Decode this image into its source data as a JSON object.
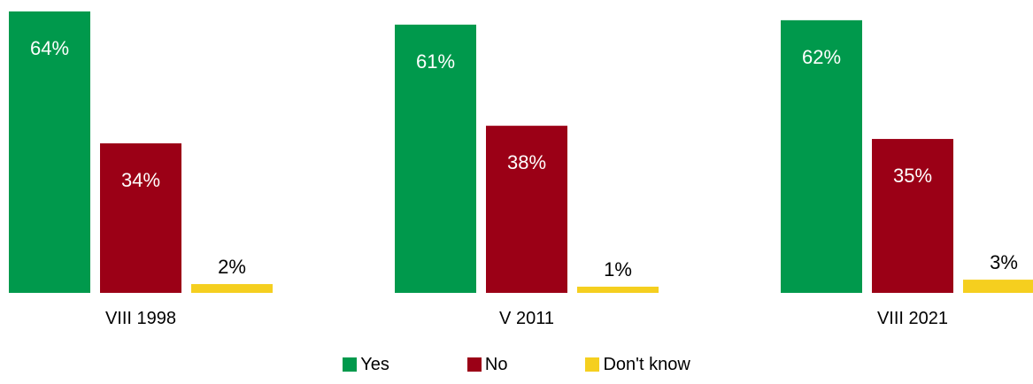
{
  "chart_data": {
    "type": "bar",
    "categories": [
      "VIII 1998",
      "V 2011",
      "VIII 2021"
    ],
    "series": [
      {
        "name": "Yes",
        "color": "#00994C",
        "values": [
          64,
          61,
          62
        ]
      },
      {
        "name": "No",
        "color": "#9B0016",
        "values": [
          34,
          38,
          35
        ]
      },
      {
        "name": "Don't know",
        "color": "#F5CF1F",
        "values": [
          2,
          1,
          3
        ]
      }
    ],
    "value_suffix": "%",
    "legend_position": "bottom",
    "grid": false,
    "ylim": [
      0,
      66
    ]
  }
}
